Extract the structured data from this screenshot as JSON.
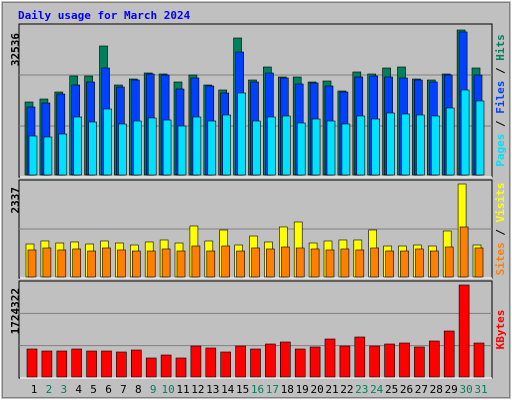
{
  "chart_data": {
    "type": "bar",
    "title": "Daily usage for March 2024",
    "categories": [
      "1",
      "2",
      "3",
      "4",
      "5",
      "6",
      "7",
      "8",
      "9",
      "10",
      "11",
      "12",
      "13",
      "14",
      "15",
      "16",
      "17",
      "18",
      "19",
      "20",
      "21",
      "22",
      "23",
      "24",
      "25",
      "26",
      "27",
      "28",
      "29",
      "30",
      "31"
    ],
    "category_colors": [
      "#000000",
      "#00805c",
      "#00805c",
      "#000000",
      "#000000",
      "#000000",
      "#000000",
      "#000000",
      "#00805c",
      "#00805c",
      "#000000",
      "#000000",
      "#000000",
      "#000000",
      "#000000",
      "#00805c",
      "#00805c",
      "#000000",
      "#000000",
      "#000000",
      "#000000",
      "#000000",
      "#00805c",
      "#00805c",
      "#000000",
      "#000000",
      "#000000",
      "#000000",
      "#000000",
      "#00805c",
      "#00805c"
    ],
    "panels": [
      {
        "ylim": [
          0,
          32536
        ],
        "yticks": [
          32536
        ],
        "series": [
          {
            "name": "Hits",
            "color": "#00805c",
            "values": [
              16381,
              17054,
              18625,
              22216,
              22216,
              28948,
              20196,
              21542,
              22889,
              22664,
              20869,
              22440,
              20196,
              19074,
              30743,
              21318,
              24235,
              21991,
              21991,
              20869,
              21094,
              18850,
              23113,
              22664,
              24011,
              24235,
              21542,
              21318,
              22664,
              32536,
              24011
            ]
          },
          {
            "name": "Files",
            "color": "#0040ff",
            "values": [
              15259,
              16157,
              18176,
              20196,
              20869,
              24011,
              19747,
              21318,
              22664,
              22440,
              19298,
              21767,
              19972,
              18401,
              27601,
              20869,
              22889,
              21767,
              20420,
              20645,
              19972,
              18625,
              21991,
              22216,
              21991,
              21767,
              21318,
              20869,
              22440,
              32100,
              22440
            ]
          },
          {
            "name": "Pages",
            "color": "#00e0ff",
            "values": [
              8752,
              8527,
              9200,
              13015,
              11893,
              14810,
              11444,
              12118,
              12791,
              12342,
              10996,
              13015,
              12118,
              13464,
              18401,
              12118,
              13015,
              13240,
              11669,
              12566,
              12118,
              11444,
              13240,
              12566,
              13913,
              13688,
              13464,
              13240,
              15035,
              19074,
              16606
            ]
          }
        ]
      },
      {
        "ylim": [
          0,
          2337
        ],
        "yticks": [
          2337
        ],
        "series": [
          {
            "name": "Visits",
            "color": "#ffff00",
            "values": [
              829,
              905,
              854,
              880,
              829,
              905,
              854,
              804,
              880,
              930,
              854,
              1282,
              905,
              1181,
              804,
              1030,
              880,
              1257,
              1382,
              854,
              905,
              930,
              930,
              1181,
              779,
              779,
              804,
              779,
              1156,
              2337,
              804
            ]
          },
          {
            "name": "Sites",
            "color": "#ff8000",
            "values": [
              679,
              729,
              679,
              704,
              653,
              729,
              679,
              653,
              653,
              704,
              653,
              779,
              653,
              779,
              653,
              729,
              704,
              754,
              729,
              704,
              679,
              704,
              679,
              729,
              653,
              653,
              704,
              653,
              754,
              1257,
              729
            ]
          }
        ]
      },
      {
        "ylim": [
          0,
          1724322
        ],
        "yticks": [
          1724322
        ],
        "series": [
          {
            "name": "KBytes",
            "color": "#ff0000",
            "values": [
              524804,
              487318,
              487318,
              524804,
              487318,
              487318,
              468575,
              506061,
              356117,
              412346,
              356117,
              581033,
              543547,
              468575,
              581033,
              524804,
              618519,
              656005,
              524804,
              562290,
              712234,
              581033,
              749720,
              581033,
              618519,
              637262,
              562290,
              674748,
              862178,
              1724322,
              637262
            ]
          }
        ]
      }
    ]
  }
}
